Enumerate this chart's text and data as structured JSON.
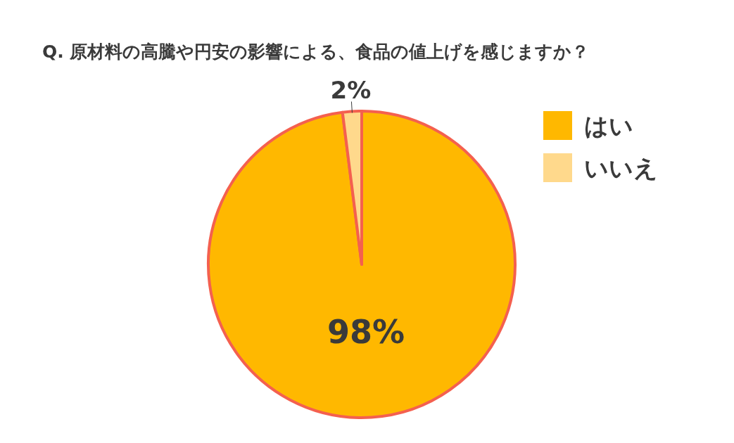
{
  "chart_data": {
    "type": "pie",
    "title": "Q. 原材料の高騰や円安の影響による、食品の値上げを感じますか？",
    "categories": [
      "はい",
      "いいえ"
    ],
    "values": [
      98,
      2
    ],
    "colors": [
      "#ffb800",
      "#ffd98c"
    ],
    "value_labels": [
      "98%",
      "2%"
    ],
    "legend": "right"
  }
}
